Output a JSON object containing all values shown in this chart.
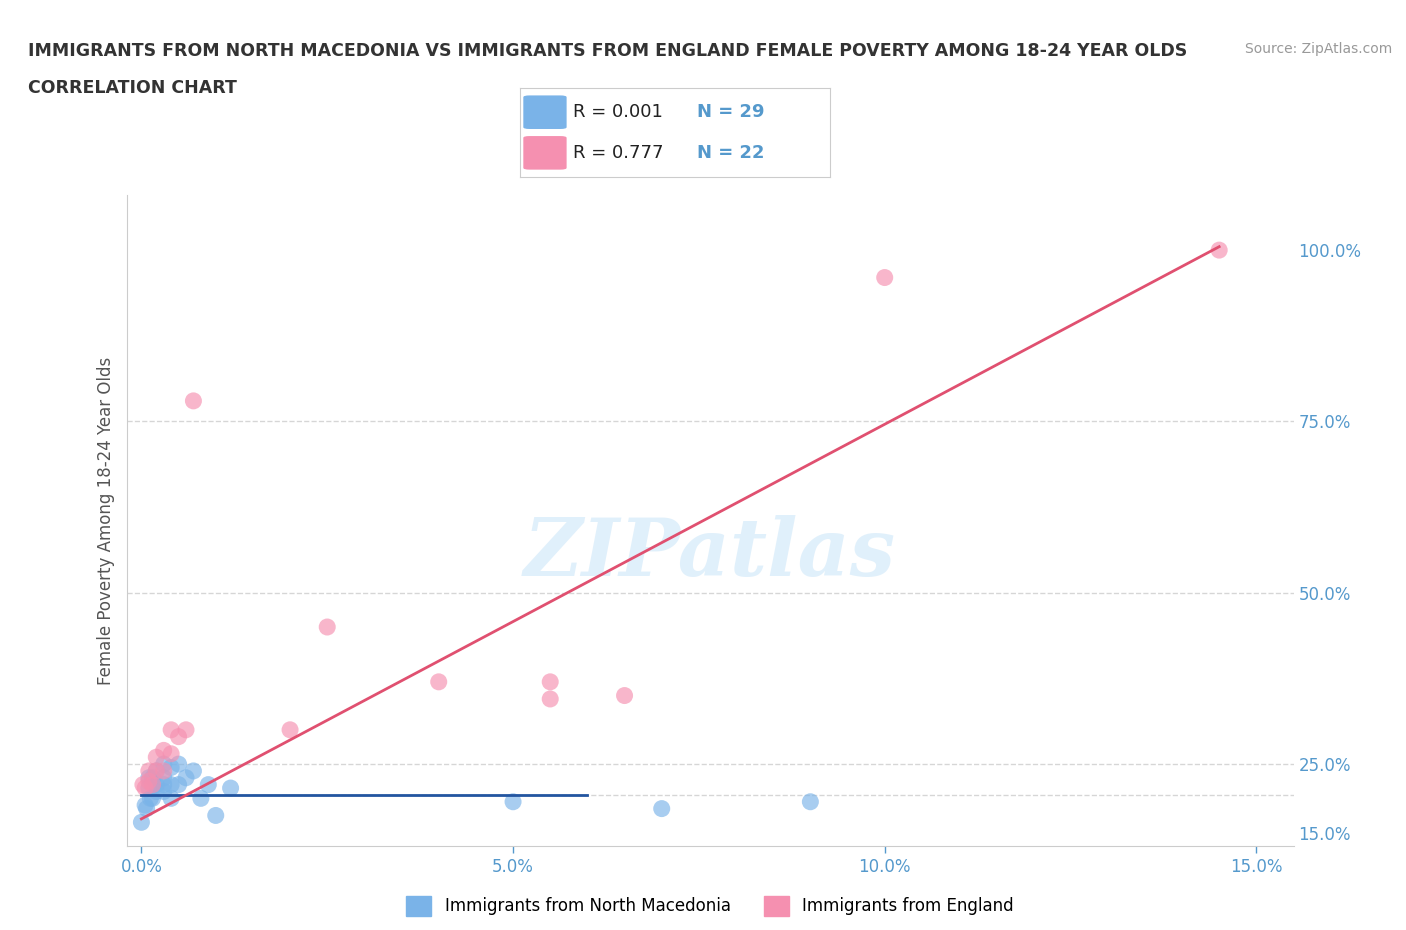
{
  "title": "IMMIGRANTS FROM NORTH MACEDONIA VS IMMIGRANTS FROM ENGLAND FEMALE POVERTY AMONG 18-24 YEAR OLDS",
  "subtitle": "CORRELATION CHART",
  "source": "Source: ZipAtlas.com",
  "ylabel": "Female Poverty Among 18-24 Year Olds",
  "watermark": "ZIPatlas",
  "legend_bottom": [
    "Immigrants from North Macedonia",
    "Immigrants from England"
  ],
  "legend_R_N": [
    {
      "R": "0.001",
      "N": "29",
      "color": "#a8c8f8"
    },
    {
      "R": "0.777",
      "N": "22",
      "color": "#f8a8c0"
    }
  ],
  "blue_scatter_x": [
    0.0,
    0.0005,
    0.0007,
    0.001,
    0.001,
    0.0012,
    0.0015,
    0.0015,
    0.002,
    0.002,
    0.002,
    0.003,
    0.003,
    0.003,
    0.003,
    0.004,
    0.004,
    0.004,
    0.005,
    0.005,
    0.006,
    0.007,
    0.008,
    0.009,
    0.01,
    0.012,
    0.05,
    0.07,
    0.09
  ],
  "blue_scatter_y": [
    0.165,
    0.19,
    0.185,
    0.215,
    0.23,
    0.2,
    0.2,
    0.23,
    0.21,
    0.22,
    0.24,
    0.21,
    0.22,
    0.23,
    0.25,
    0.2,
    0.22,
    0.245,
    0.22,
    0.25,
    0.23,
    0.24,
    0.2,
    0.22,
    0.175,
    0.215,
    0.195,
    0.185,
    0.195
  ],
  "pink_scatter_x": [
    0.0002,
    0.0005,
    0.001,
    0.001,
    0.0015,
    0.002,
    0.002,
    0.003,
    0.003,
    0.004,
    0.004,
    0.005,
    0.006,
    0.007,
    0.02,
    0.025,
    0.04,
    0.055,
    0.055,
    0.065,
    0.1,
    0.145
  ],
  "pink_scatter_y": [
    0.22,
    0.215,
    0.225,
    0.24,
    0.22,
    0.24,
    0.26,
    0.24,
    0.27,
    0.265,
    0.3,
    0.29,
    0.3,
    0.78,
    0.3,
    0.45,
    0.37,
    0.345,
    0.37,
    0.35,
    0.96,
    1.0
  ],
  "blue_line_x": [
    0.0,
    0.06
  ],
  "blue_line_y": [
    0.205,
    0.205
  ],
  "pink_line_x": [
    0.0,
    0.145
  ],
  "pink_line_y": [
    0.17,
    1.005
  ],
  "xlim_min": -0.002,
  "xlim_max": 0.155,
  "ylim_min": 0.13,
  "ylim_max": 1.08,
  "yticks": [
    0.25,
    0.5,
    0.75,
    1.0
  ],
  "ytick_right_values": [
    0.25,
    0.5,
    0.75,
    1.0
  ],
  "ytick_right_labels": [
    "25.0%",
    "50.0%",
    "75.0%",
    "100.0%"
  ],
  "ytick_bottom_value": 0.15,
  "ytick_bottom_label": "15.0%",
  "xticks": [
    0.0,
    0.05,
    0.1,
    0.15
  ],
  "xtick_labels": [
    "0.0%",
    "5.0%",
    "10.0%",
    "15.0%"
  ],
  "dashed_hlines": [
    0.25,
    0.5,
    0.75,
    0.205
  ],
  "blue_color": "#7ab3e8",
  "pink_color": "#f590b0",
  "blue_line_color": "#2255a0",
  "pink_line_color": "#e05070",
  "title_color": "#333333",
  "axis_label_color": "#555555",
  "tick_color": "#5599cc",
  "background_color": "#ffffff",
  "grid_color": "#cccccc"
}
